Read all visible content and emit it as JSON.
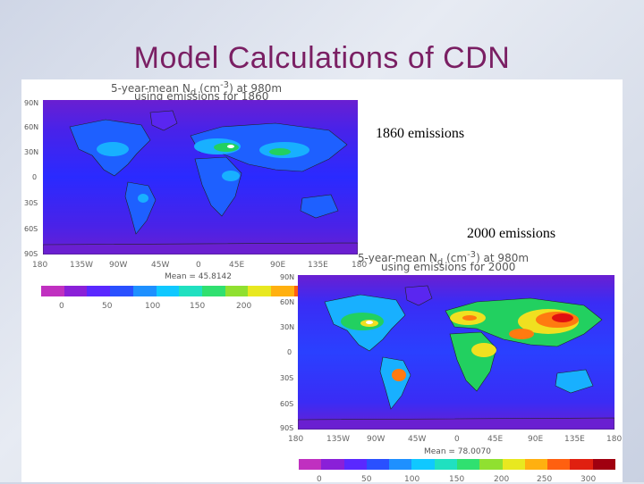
{
  "slide": {
    "title": "Model Calculations of CDN"
  },
  "map1860": {
    "heading_line1": "5-year-mean N",
    "heading_sub": "d",
    "heading_units": "(cm",
    "heading_exp": "-3",
    "heading_tail": ") at 980m",
    "heading_line2": "using emissions for 1860",
    "label": "1860 emissions",
    "mean_label": "Mean = 45.8142",
    "lat_ticks": [
      "90N",
      "60N",
      "30N",
      "0",
      "30S",
      "60S",
      "90S"
    ],
    "lon_ticks": [
      "180",
      "135W",
      "90W",
      "45W",
      "0",
      "45E",
      "90E",
      "135E",
      "180"
    ],
    "colorbar_ticks": [
      "0",
      "50",
      "100",
      "150",
      "200"
    ]
  },
  "map2000": {
    "heading_line1": "5-year-mean N",
    "heading_sub": "d",
    "heading_units": "(cm",
    "heading_exp": "-3",
    "heading_tail": ") at 980m",
    "heading_line2": "using emissions for 2000",
    "label": "2000 emissions",
    "mean_label": "Mean = 78.0070",
    "lat_ticks": [
      "90N",
      "60N",
      "30N",
      "0",
      "30S",
      "60S",
      "90S"
    ],
    "lon_ticks": [
      "180",
      "135W",
      "90W",
      "45W",
      "0",
      "45E",
      "90E",
      "135E",
      "180"
    ],
    "colorbar_ticks": [
      "0",
      "50",
      "100",
      "150",
      "200",
      "250",
      "300"
    ]
  },
  "colors": {
    "title": "#7a1f63",
    "ocean_low": "#6a1fd1",
    "ocean_mid": "#2a2aff",
    "land_low": "#1e60ff",
    "land_mid": "#18b0ff",
    "green": "#22d060",
    "yellow": "#f0e020",
    "orange": "#ff7a10",
    "red": "#e01010"
  },
  "colorbar_palette": [
    "#c030c0",
    "#8a20d8",
    "#5a28ff",
    "#2a50ff",
    "#1e90ff",
    "#10c8ff",
    "#20e0c0",
    "#30e070",
    "#90e030",
    "#e8e820",
    "#ffb010",
    "#ff6010",
    "#e02010",
    "#a00010"
  ]
}
